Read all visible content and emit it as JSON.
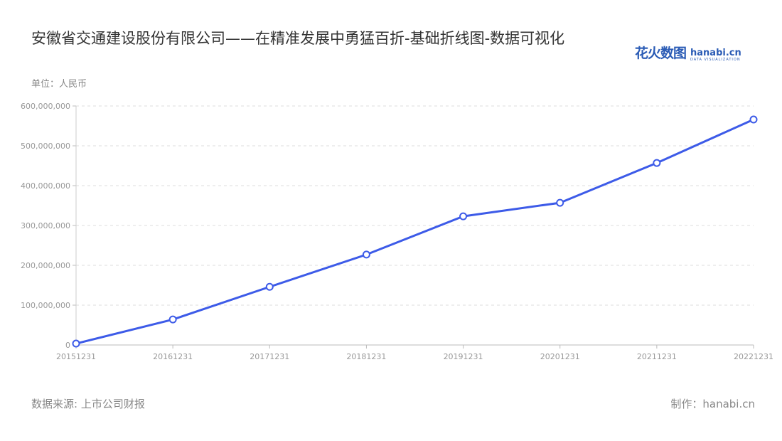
{
  "title": "安徽省交通建设股份有限公司——在精准发展中勇猛百折-基础折线图-数据可视化",
  "logo": {
    "cn": "花火数图",
    "en": "hanabi.cn",
    "sub": "DATA VISUALIZATION"
  },
  "footer": {
    "source": "数据来源: 上市公司财报",
    "maker": "制作：hanabi.cn"
  },
  "chart_data": {
    "type": "line",
    "title": "安徽省交通建设股份有限公司——在精准发展中勇猛百折-基础折线图-数据可视化",
    "ylabel": "单位：人民币",
    "xlabel": "",
    "categories": [
      "20151231",
      "20161231",
      "20171231",
      "20181231",
      "20191231",
      "20201231",
      "20211231",
      "20221231"
    ],
    "values": [
      3500000,
      64000000,
      146000000,
      227000000,
      323000000,
      357000000,
      457000000,
      566000000
    ],
    "ylim": [
      0,
      600000000
    ],
    "yticks": [
      "0",
      "100,000,000",
      "200,000,000",
      "300,000,000",
      "400,000,000",
      "500,000,000",
      "600,000,000"
    ],
    "grid": true,
    "color": "#3d5be8"
  }
}
